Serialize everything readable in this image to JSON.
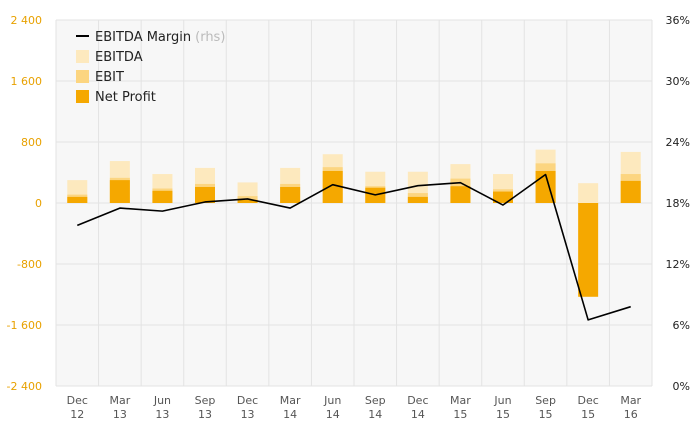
{
  "chart_data": {
    "type": "bar",
    "categories": [
      [
        "Dec",
        "12"
      ],
      [
        "Mar",
        "13"
      ],
      [
        "Jun",
        "13"
      ],
      [
        "Sep",
        "13"
      ],
      [
        "Dec",
        "13"
      ],
      [
        "Mar",
        "14"
      ],
      [
        "Jun",
        "14"
      ],
      [
        "Sep",
        "14"
      ],
      [
        "Dec",
        "14"
      ],
      [
        "Mar",
        "15"
      ],
      [
        "Jun",
        "15"
      ],
      [
        "Sep",
        "15"
      ],
      [
        "Dec",
        "15"
      ],
      [
        "Mar",
        "16"
      ]
    ],
    "series": [
      {
        "name": "EBITDA Margin",
        "name_note": "(rhs)",
        "kind": "line",
        "axis": "right",
        "color": "#000000",
        "values": [
          15.8,
          17.5,
          17.2,
          18.1,
          18.4,
          17.5,
          19.8,
          18.8,
          19.7,
          20.0,
          17.8,
          20.8,
          6.5,
          7.8
        ]
      },
      {
        "name": "EBITDA",
        "kind": "bar",
        "axis": "left",
        "color": "#fde9be",
        "values": [
          300,
          550,
          380,
          460,
          270,
          460,
          640,
          410,
          410,
          510,
          380,
          700,
          260,
          670
        ]
      },
      {
        "name": "EBIT",
        "kind": "bar",
        "axis": "left",
        "color": "#fcd580",
        "values": [
          110,
          330,
          190,
          250,
          90,
          250,
          470,
          220,
          130,
          320,
          180,
          520,
          -20,
          380
        ]
      },
      {
        "name": "Net Profit",
        "kind": "bar",
        "axis": "left",
        "color": "#f5a800",
        "values": [
          80,
          300,
          160,
          210,
          40,
          210,
          420,
          200,
          80,
          220,
          150,
          420,
          -1230,
          290
        ]
      }
    ],
    "y_left": {
      "min": -2400,
      "max": 2400,
      "ticks": [
        "2 400",
        "1 600",
        "800",
        "0",
        "-800",
        "-1 600",
        "-2 400"
      ],
      "tick_color": "#e8a100"
    },
    "y_right": {
      "min": 0,
      "max": 36,
      "ticks": [
        "36%",
        "30%",
        "24%",
        "18%",
        "12%",
        "6%",
        "0%"
      ]
    },
    "legend_placement": "top-left",
    "grid": true
  }
}
